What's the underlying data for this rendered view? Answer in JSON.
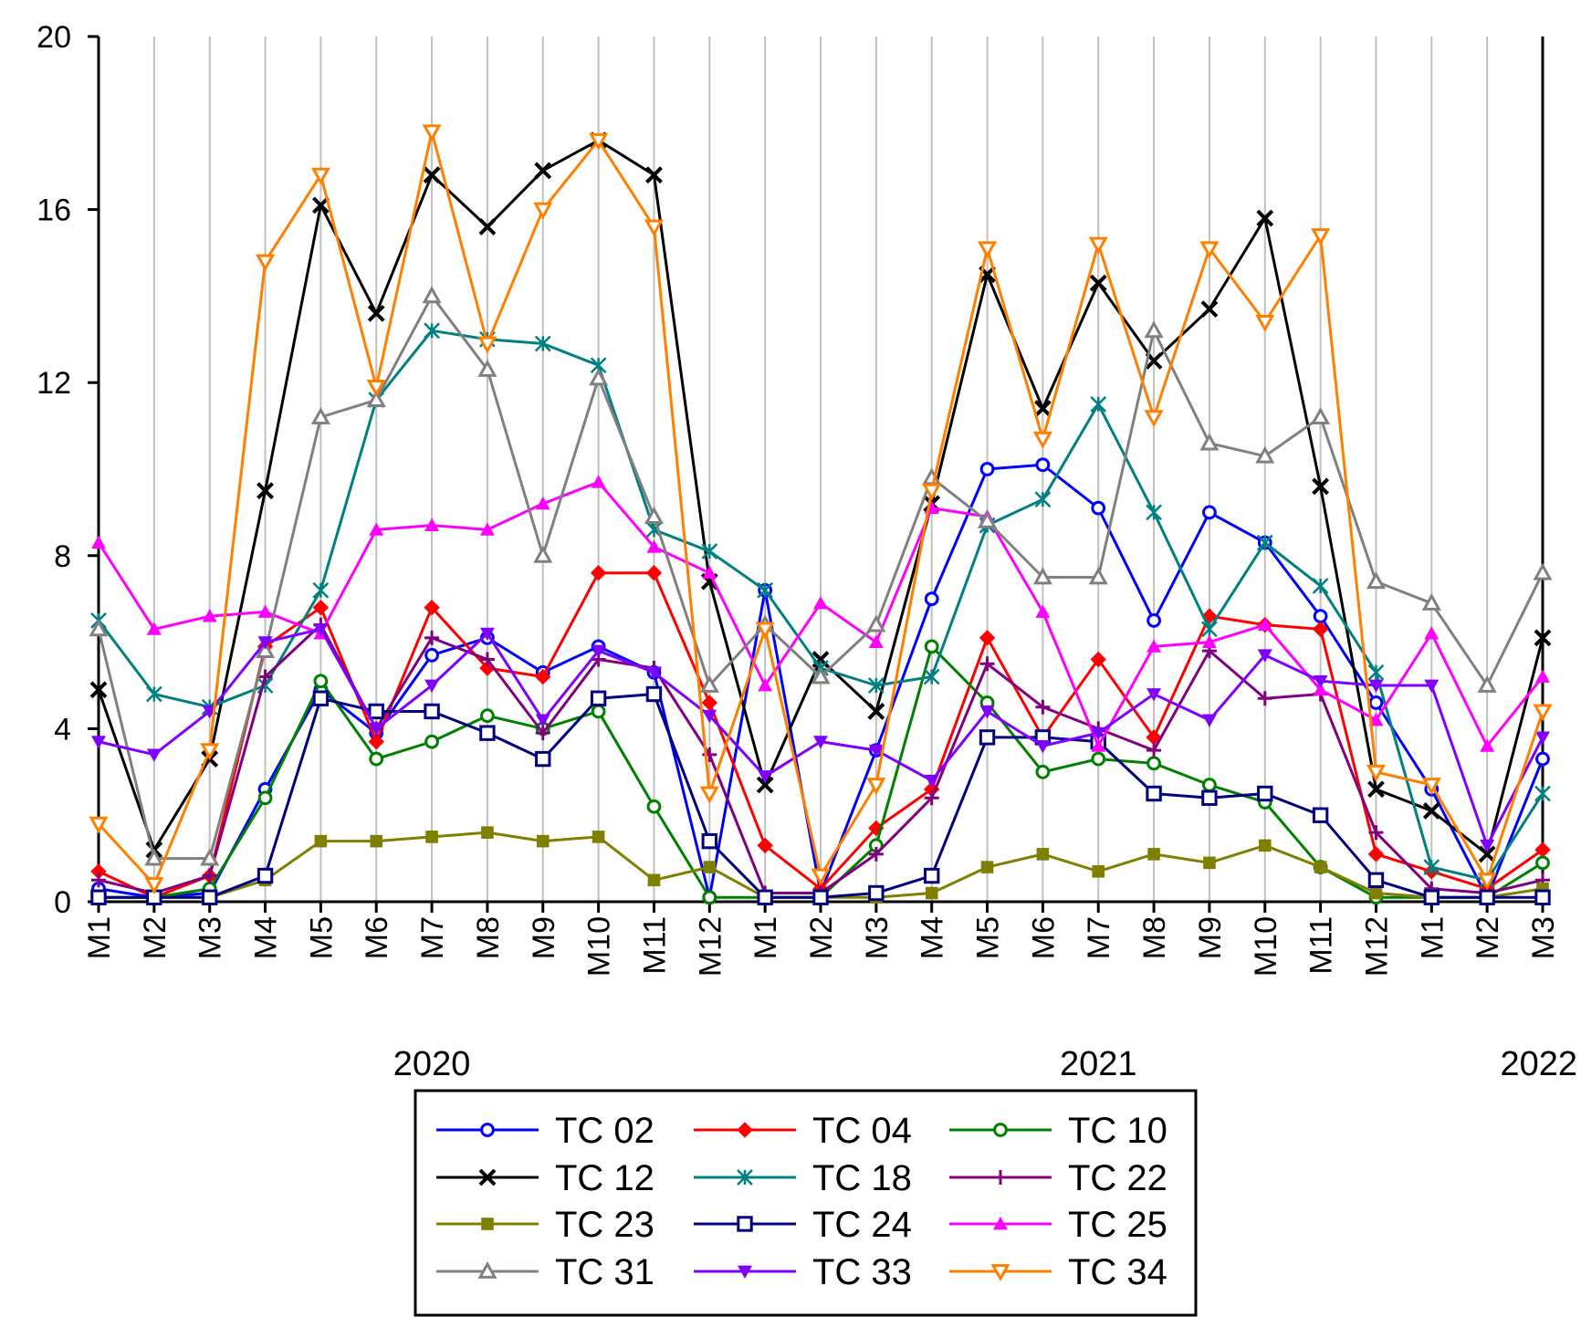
{
  "chart_data": {
    "type": "line",
    "title": "",
    "xlabel": "",
    "ylabel": "",
    "ylim": [
      0,
      20
    ],
    "yticks": [
      "0",
      "4",
      "8",
      "12",
      "16",
      "20"
    ],
    "grid": "vertical",
    "categories": [
      "M1",
      "M2",
      "M3",
      "M4",
      "M5",
      "M6",
      "M7",
      "M8",
      "M9",
      "M10",
      "M11",
      "M12",
      "M1",
      "M2",
      "M3",
      "M4",
      "M5",
      "M6",
      "M7",
      "M8",
      "M9",
      "M10",
      "M11",
      "M12",
      "M1",
      "M2",
      "M3"
    ],
    "year_labels": [
      {
        "label": "2020",
        "at_index": 6
      },
      {
        "label": "2021",
        "at_index": 18
      },
      {
        "label": "2022",
        "at_index": 26
      }
    ],
    "legend_position": "bottom",
    "series": [
      {
        "name": "TC 02",
        "color": "#0000ff",
        "marker": "circle-open",
        "values": [
          0.3,
          0.1,
          0.2,
          2.6,
          4.9,
          3.9,
          5.7,
          6.1,
          5.3,
          5.9,
          5.3,
          0.1,
          7.2,
          0.2,
          3.5,
          7.0,
          10.0,
          10.1,
          9.1,
          6.5,
          9.0,
          8.3,
          6.6,
          4.6,
          2.6,
          0.1,
          3.3
        ]
      },
      {
        "name": "TC 04",
        "color": "#ff0000",
        "marker": "diamond",
        "values": [
          0.7,
          0.1,
          0.6,
          5.9,
          6.8,
          3.7,
          6.8,
          5.4,
          5.2,
          7.6,
          7.6,
          4.6,
          1.3,
          0.3,
          1.7,
          2.6,
          6.1,
          3.8,
          5.6,
          3.8,
          6.6,
          6.4,
          6.3,
          1.1,
          0.7,
          0.3,
          1.2
        ]
      },
      {
        "name": "TC 10",
        "color": "#008000",
        "marker": "circle-open",
        "values": [
          0.1,
          0.1,
          0.3,
          2.4,
          5.1,
          3.3,
          3.7,
          4.3,
          4.0,
          4.4,
          2.2,
          0.1,
          0.1,
          0.1,
          1.3,
          5.9,
          4.6,
          3.0,
          3.3,
          3.2,
          2.7,
          2.3,
          0.8,
          0.1,
          0.1,
          0.1,
          0.9
        ]
      },
      {
        "name": "TC 12",
        "color": "#000000",
        "marker": "x",
        "values": [
          4.9,
          1.2,
          3.3,
          9.5,
          16.1,
          13.6,
          16.8,
          15.6,
          16.9,
          17.6,
          16.8,
          7.4,
          2.7,
          5.6,
          4.4,
          9.2,
          14.5,
          11.4,
          14.3,
          12.5,
          13.7,
          15.8,
          9.6,
          2.6,
          2.1,
          1.1,
          6.1
        ]
      },
      {
        "name": "TC 18",
        "color": "#008080",
        "marker": "star",
        "values": [
          6.5,
          4.8,
          4.5,
          5.0,
          7.2,
          11.6,
          13.2,
          13.0,
          12.9,
          12.4,
          8.6,
          8.1,
          7.2,
          5.4,
          5.0,
          5.2,
          8.7,
          9.3,
          11.5,
          9.0,
          6.3,
          8.3,
          7.3,
          5.3,
          0.8,
          0.5,
          2.5
        ]
      },
      {
        "name": "TC 22",
        "color": "#800080",
        "marker": "plus",
        "values": [
          0.5,
          0.2,
          0.6,
          5.2,
          6.4,
          4.0,
          6.1,
          5.6,
          3.9,
          5.6,
          5.4,
          3.4,
          0.2,
          0.2,
          1.1,
          2.4,
          5.5,
          4.5,
          4.0,
          3.5,
          5.8,
          4.7,
          4.8,
          1.6,
          0.3,
          0.2,
          0.5
        ]
      },
      {
        "name": "TC 23",
        "color": "#808000",
        "marker": "square",
        "values": [
          0.1,
          0.1,
          0.1,
          0.5,
          1.4,
          1.4,
          1.5,
          1.6,
          1.4,
          1.5,
          0.5,
          0.8,
          0.1,
          0.1,
          0.1,
          0.2,
          0.8,
          1.1,
          0.7,
          1.1,
          0.9,
          1.3,
          0.8,
          0.2,
          0.1,
          0.1,
          0.3
        ]
      },
      {
        "name": "TC 24",
        "color": "#000080",
        "marker": "square-open",
        "values": [
          0.1,
          0.1,
          0.1,
          0.6,
          4.7,
          4.4,
          4.4,
          3.9,
          3.3,
          4.7,
          4.8,
          1.4,
          0.1,
          0.1,
          0.2,
          0.6,
          3.8,
          3.8,
          3.7,
          2.5,
          2.4,
          2.5,
          2.0,
          0.5,
          0.1,
          0.1,
          0.1
        ]
      },
      {
        "name": "TC 25",
        "color": "#ff00ff",
        "marker": "triangle",
        "values": [
          8.3,
          6.3,
          6.6,
          6.7,
          6.2,
          8.6,
          8.7,
          8.6,
          9.2,
          9.7,
          8.2,
          7.6,
          5.0,
          6.9,
          6.0,
          9.1,
          8.9,
          6.7,
          3.6,
          5.9,
          6.0,
          6.4,
          4.9,
          4.2,
          6.2,
          3.6,
          5.2
        ]
      },
      {
        "name": "TC 31",
        "color": "#808080",
        "marker": "triangle-open",
        "values": [
          6.3,
          1.0,
          1.0,
          5.8,
          11.2,
          11.6,
          14.0,
          12.3,
          8.0,
          12.1,
          8.9,
          5.0,
          6.4,
          5.2,
          6.4,
          9.8,
          8.8,
          7.5,
          7.5,
          13.2,
          10.6,
          10.3,
          11.2,
          7.4,
          6.9,
          5.0,
          7.6
        ]
      },
      {
        "name": "TC 33",
        "color": "#8000ff",
        "marker": "triangle-down",
        "values": [
          3.7,
          3.4,
          4.4,
          6.0,
          6.3,
          4.0,
          5.0,
          6.2,
          4.2,
          5.8,
          5.3,
          4.3,
          2.9,
          3.7,
          3.5,
          2.8,
          4.4,
          3.6,
          3.9,
          4.8,
          4.2,
          5.7,
          5.1,
          5.0,
          5.0,
          1.3,
          3.8
        ]
      },
      {
        "name": "TC 34",
        "color": "#ff8000",
        "marker": "triangle-down-open",
        "values": [
          1.8,
          0.4,
          3.5,
          14.8,
          16.8,
          11.9,
          17.8,
          12.9,
          16.0,
          17.6,
          15.6,
          2.5,
          6.3,
          0.6,
          2.7,
          9.5,
          15.1,
          10.7,
          15.2,
          11.2,
          15.1,
          13.4,
          15.4,
          3.0,
          2.7,
          0.5,
          4.4
        ]
      }
    ]
  }
}
